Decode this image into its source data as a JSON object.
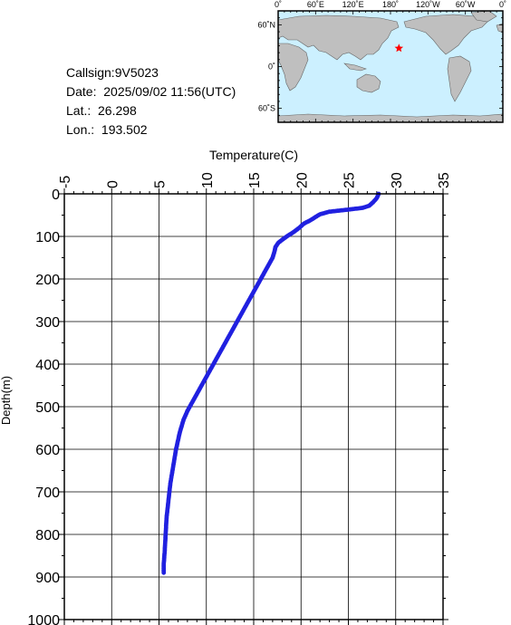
{
  "info": {
    "callsign": "Callsign:9V5023",
    "date": "Date:  2025/09/02 11:56(UTC)",
    "lat": "Lat.:  26.298",
    "lon": "Lon.:  193.502"
  },
  "map": {
    "top_labels": [
      "0˚",
      "60˚E",
      "120˚E",
      "180˚",
      "120˚W",
      "60˚W",
      "0˚"
    ],
    "left_labels": [
      "60˚N",
      "0˚",
      "60˚S"
    ],
    "ocean_color": "#ccf0ff",
    "land_color": "#bfbfbf",
    "marker_color": "#ff0000",
    "marker": {
      "lon": 193.502,
      "lat": 26.298
    }
  },
  "chart_data": {
    "type": "scatter",
    "xlabel": "Temperature(C)",
    "ylabel": "Depth(m)",
    "xlim": [
      -5,
      35
    ],
    "ylim": [
      0,
      1000
    ],
    "x_ticks": [
      "-5",
      "0",
      "5",
      "10",
      "15",
      "20",
      "25",
      "30",
      "35"
    ],
    "y_ticks": [
      "0",
      "100",
      "200",
      "300",
      "400",
      "500",
      "600",
      "700",
      "800",
      "900",
      "1000"
    ],
    "y_inverted": true,
    "grid": true,
    "x_axis_position": "top",
    "color": "#2020e0",
    "profile": [
      [
        28.2,
        0
      ],
      [
        28.0,
        10
      ],
      [
        27.6,
        20
      ],
      [
        27.2,
        28
      ],
      [
        26.5,
        33
      ],
      [
        25.0,
        37
      ],
      [
        23.0,
        42
      ],
      [
        22.0,
        48
      ],
      [
        21.5,
        55
      ],
      [
        21.0,
        62
      ],
      [
        20.3,
        70
      ],
      [
        19.8,
        80
      ],
      [
        19.2,
        90
      ],
      [
        18.5,
        100
      ],
      [
        18.0,
        108
      ],
      [
        17.6,
        115
      ],
      [
        17.3,
        125
      ],
      [
        17.2,
        135
      ],
      [
        17.0,
        150
      ],
      [
        16.5,
        170
      ],
      [
        16.0,
        190
      ],
      [
        15.5,
        210
      ],
      [
        15.0,
        230
      ],
      [
        14.5,
        250
      ],
      [
        14.0,
        270
      ],
      [
        13.5,
        290
      ],
      [
        13.0,
        310
      ],
      [
        12.5,
        330
      ],
      [
        12.0,
        350
      ],
      [
        11.5,
        370
      ],
      [
        11.0,
        390
      ],
      [
        10.5,
        410
      ],
      [
        10.0,
        430
      ],
      [
        9.5,
        450
      ],
      [
        9.0,
        470
      ],
      [
        8.5,
        490
      ],
      [
        8.0,
        510
      ],
      [
        7.6,
        530
      ],
      [
        7.2,
        560
      ],
      [
        6.8,
        600
      ],
      [
        6.5,
        640
      ],
      [
        6.2,
        680
      ],
      [
        6.0,
        720
      ],
      [
        5.8,
        760
      ],
      [
        5.7,
        800
      ],
      [
        5.6,
        840
      ],
      [
        5.5,
        870
      ],
      [
        5.5,
        890
      ]
    ]
  }
}
